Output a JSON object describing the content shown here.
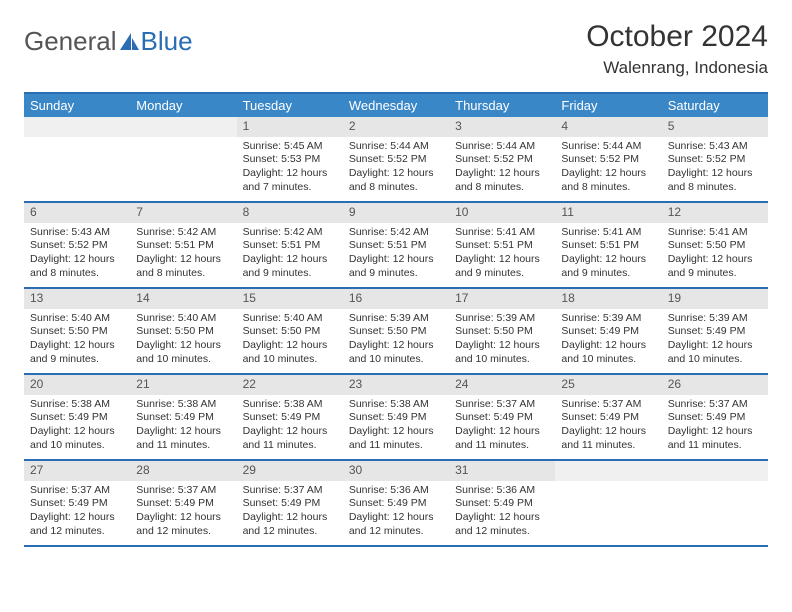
{
  "logo": {
    "part1": "General",
    "part2": "Blue"
  },
  "title": "October 2024",
  "location": "Walenrang, Indonesia",
  "colors": {
    "header_bg": "#3a87c8",
    "header_text": "#ffffff",
    "border": "#2a6db3",
    "daynum_bg": "#e6e6e6",
    "daynum_text": "#555555",
    "body_text": "#333333",
    "logo_blue": "#2a6db3",
    "logo_gray": "#555555"
  },
  "dayheaders": [
    "Sunday",
    "Monday",
    "Tuesday",
    "Wednesday",
    "Thursday",
    "Friday",
    "Saturday"
  ],
  "weeks": [
    [
      {
        "empty": true
      },
      {
        "empty": true
      },
      {
        "day": "1",
        "sunrise": "Sunrise: 5:45 AM",
        "sunset": "Sunset: 5:53 PM",
        "daylight": "Daylight: 12 hours and 7 minutes."
      },
      {
        "day": "2",
        "sunrise": "Sunrise: 5:44 AM",
        "sunset": "Sunset: 5:52 PM",
        "daylight": "Daylight: 12 hours and 8 minutes."
      },
      {
        "day": "3",
        "sunrise": "Sunrise: 5:44 AM",
        "sunset": "Sunset: 5:52 PM",
        "daylight": "Daylight: 12 hours and 8 minutes."
      },
      {
        "day": "4",
        "sunrise": "Sunrise: 5:44 AM",
        "sunset": "Sunset: 5:52 PM",
        "daylight": "Daylight: 12 hours and 8 minutes."
      },
      {
        "day": "5",
        "sunrise": "Sunrise: 5:43 AM",
        "sunset": "Sunset: 5:52 PM",
        "daylight": "Daylight: 12 hours and 8 minutes."
      }
    ],
    [
      {
        "day": "6",
        "sunrise": "Sunrise: 5:43 AM",
        "sunset": "Sunset: 5:52 PM",
        "daylight": "Daylight: 12 hours and 8 minutes."
      },
      {
        "day": "7",
        "sunrise": "Sunrise: 5:42 AM",
        "sunset": "Sunset: 5:51 PM",
        "daylight": "Daylight: 12 hours and 8 minutes."
      },
      {
        "day": "8",
        "sunrise": "Sunrise: 5:42 AM",
        "sunset": "Sunset: 5:51 PM",
        "daylight": "Daylight: 12 hours and 9 minutes."
      },
      {
        "day": "9",
        "sunrise": "Sunrise: 5:42 AM",
        "sunset": "Sunset: 5:51 PM",
        "daylight": "Daylight: 12 hours and 9 minutes."
      },
      {
        "day": "10",
        "sunrise": "Sunrise: 5:41 AM",
        "sunset": "Sunset: 5:51 PM",
        "daylight": "Daylight: 12 hours and 9 minutes."
      },
      {
        "day": "11",
        "sunrise": "Sunrise: 5:41 AM",
        "sunset": "Sunset: 5:51 PM",
        "daylight": "Daylight: 12 hours and 9 minutes."
      },
      {
        "day": "12",
        "sunrise": "Sunrise: 5:41 AM",
        "sunset": "Sunset: 5:50 PM",
        "daylight": "Daylight: 12 hours and 9 minutes."
      }
    ],
    [
      {
        "day": "13",
        "sunrise": "Sunrise: 5:40 AM",
        "sunset": "Sunset: 5:50 PM",
        "daylight": "Daylight: 12 hours and 9 minutes."
      },
      {
        "day": "14",
        "sunrise": "Sunrise: 5:40 AM",
        "sunset": "Sunset: 5:50 PM",
        "daylight": "Daylight: 12 hours and 10 minutes."
      },
      {
        "day": "15",
        "sunrise": "Sunrise: 5:40 AM",
        "sunset": "Sunset: 5:50 PM",
        "daylight": "Daylight: 12 hours and 10 minutes."
      },
      {
        "day": "16",
        "sunrise": "Sunrise: 5:39 AM",
        "sunset": "Sunset: 5:50 PM",
        "daylight": "Daylight: 12 hours and 10 minutes."
      },
      {
        "day": "17",
        "sunrise": "Sunrise: 5:39 AM",
        "sunset": "Sunset: 5:50 PM",
        "daylight": "Daylight: 12 hours and 10 minutes."
      },
      {
        "day": "18",
        "sunrise": "Sunrise: 5:39 AM",
        "sunset": "Sunset: 5:49 PM",
        "daylight": "Daylight: 12 hours and 10 minutes."
      },
      {
        "day": "19",
        "sunrise": "Sunrise: 5:39 AM",
        "sunset": "Sunset: 5:49 PM",
        "daylight": "Daylight: 12 hours and 10 minutes."
      }
    ],
    [
      {
        "day": "20",
        "sunrise": "Sunrise: 5:38 AM",
        "sunset": "Sunset: 5:49 PM",
        "daylight": "Daylight: 12 hours and 10 minutes."
      },
      {
        "day": "21",
        "sunrise": "Sunrise: 5:38 AM",
        "sunset": "Sunset: 5:49 PM",
        "daylight": "Daylight: 12 hours and 11 minutes."
      },
      {
        "day": "22",
        "sunrise": "Sunrise: 5:38 AM",
        "sunset": "Sunset: 5:49 PM",
        "daylight": "Daylight: 12 hours and 11 minutes."
      },
      {
        "day": "23",
        "sunrise": "Sunrise: 5:38 AM",
        "sunset": "Sunset: 5:49 PM",
        "daylight": "Daylight: 12 hours and 11 minutes."
      },
      {
        "day": "24",
        "sunrise": "Sunrise: 5:37 AM",
        "sunset": "Sunset: 5:49 PM",
        "daylight": "Daylight: 12 hours and 11 minutes."
      },
      {
        "day": "25",
        "sunrise": "Sunrise: 5:37 AM",
        "sunset": "Sunset: 5:49 PM",
        "daylight": "Daylight: 12 hours and 11 minutes."
      },
      {
        "day": "26",
        "sunrise": "Sunrise: 5:37 AM",
        "sunset": "Sunset: 5:49 PM",
        "daylight": "Daylight: 12 hours and 11 minutes."
      }
    ],
    [
      {
        "day": "27",
        "sunrise": "Sunrise: 5:37 AM",
        "sunset": "Sunset: 5:49 PM",
        "daylight": "Daylight: 12 hours and 12 minutes."
      },
      {
        "day": "28",
        "sunrise": "Sunrise: 5:37 AM",
        "sunset": "Sunset: 5:49 PM",
        "daylight": "Daylight: 12 hours and 12 minutes."
      },
      {
        "day": "29",
        "sunrise": "Sunrise: 5:37 AM",
        "sunset": "Sunset: 5:49 PM",
        "daylight": "Daylight: 12 hours and 12 minutes."
      },
      {
        "day": "30",
        "sunrise": "Sunrise: 5:36 AM",
        "sunset": "Sunset: 5:49 PM",
        "daylight": "Daylight: 12 hours and 12 minutes."
      },
      {
        "day": "31",
        "sunrise": "Sunrise: 5:36 AM",
        "sunset": "Sunset: 5:49 PM",
        "daylight": "Daylight: 12 hours and 12 minutes."
      },
      {
        "empty": true
      },
      {
        "empty": true
      }
    ]
  ]
}
